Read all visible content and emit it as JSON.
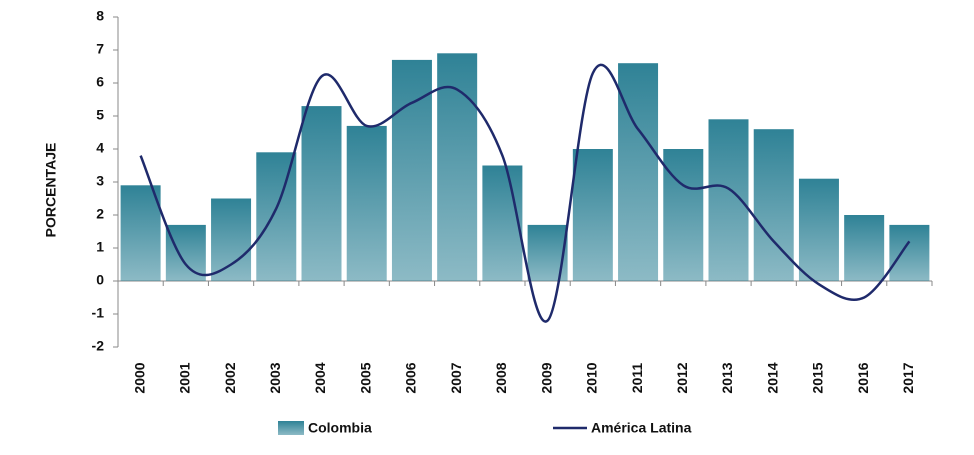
{
  "chart_data": {
    "type": "bar-line",
    "y_label": "PORCENTAJE",
    "categories": [
      "2000",
      "2001",
      "2002",
      "2003",
      "2004",
      "2005",
      "2006",
      "2007",
      "2008",
      "2009",
      "2010",
      "2011",
      "2012",
      "2013",
      "2014",
      "2015",
      "2016",
      "2017"
    ],
    "series": [
      {
        "name": "Colombia",
        "type": "bar",
        "color": "#2f8296",
        "values": [
          2.9,
          1.7,
          2.5,
          3.9,
          5.3,
          4.7,
          6.7,
          6.9,
          3.5,
          1.7,
          4.0,
          6.6,
          4.0,
          4.9,
          4.6,
          3.1,
          2.0,
          1.7
        ]
      },
      {
        "name": "América Latina",
        "type": "line",
        "color": "#1f2a6b",
        "values": [
          3.8,
          0.5,
          0.5,
          2.2,
          6.2,
          4.7,
          5.4,
          5.8,
          3.8,
          -1.2,
          6.3,
          4.6,
          2.9,
          2.8,
          1.2,
          -0.1,
          -0.5,
          1.2
        ]
      }
    ],
    "ylim": [
      -2,
      8
    ],
    "yticks": [
      -2,
      -1,
      0,
      1,
      2,
      3,
      4,
      5,
      6,
      7,
      8
    ],
    "legend": "bottom"
  }
}
